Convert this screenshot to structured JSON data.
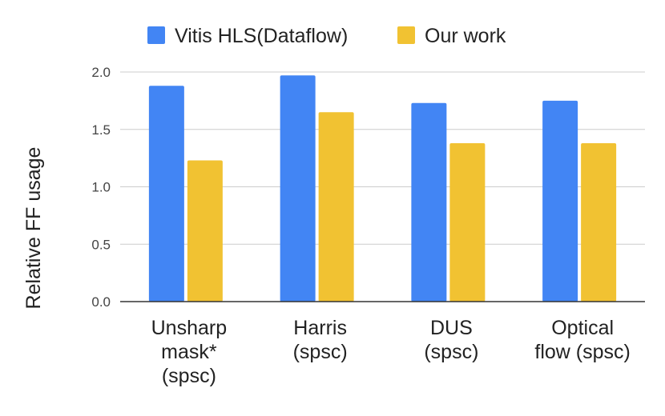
{
  "chart_data": {
    "type": "bar",
    "title": "",
    "xlabel": "",
    "ylabel": "Relative FF usage",
    "ylim": [
      0,
      2.0
    ],
    "yticks": [
      "0.0",
      "0.5",
      "1.0",
      "1.5",
      "2.0"
    ],
    "grid": true,
    "legend_position": "top",
    "categories": [
      [
        "Unsharp",
        "mask*",
        "(spsc)"
      ],
      [
        "Harris",
        "(spsc)"
      ],
      [
        "DUS",
        "(spsc)"
      ],
      [
        "Optical",
        "flow (spsc)"
      ]
    ],
    "series": [
      {
        "name": "Vitis HLS(Dataflow)",
        "color": "#4285F4",
        "values": [
          1.88,
          1.97,
          1.73,
          1.75
        ]
      },
      {
        "name": "Our work",
        "color": "#F1C232",
        "values": [
          1.23,
          1.65,
          1.38,
          1.38
        ]
      }
    ]
  }
}
